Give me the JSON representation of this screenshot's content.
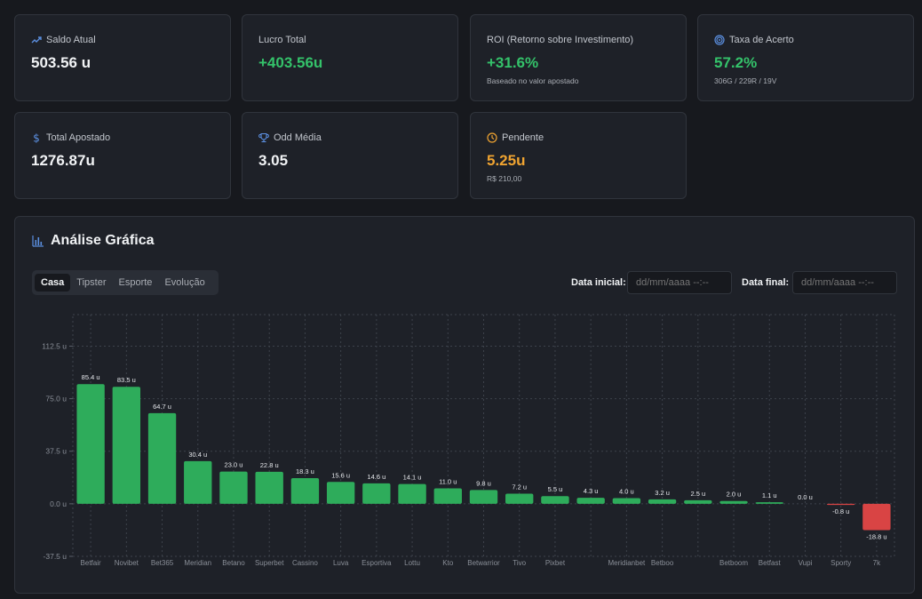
{
  "stats": {
    "saldo": {
      "label": "Saldo Atual",
      "value": "503.56 u",
      "icon": "trend-up-icon"
    },
    "lucro": {
      "label": "Lucro Total",
      "value": "+403.56u"
    },
    "roi": {
      "label": "ROI (Retorno sobre Investimento)",
      "value": "+31.6%",
      "sub": "Baseado no valor apostado"
    },
    "acerto": {
      "label": "Taxa de Acerto",
      "value": "57.2%",
      "sub": "306G / 229R / 19V",
      "icon": "target-icon"
    },
    "apostado": {
      "label": "Total Apostado",
      "value": "1276.87u",
      "icon": "dollar-icon"
    },
    "odd": {
      "label": "Odd Média",
      "value": "3.05",
      "icon": "trophy-icon"
    },
    "pendente": {
      "label": "Pendente",
      "value": "5.25u",
      "sub": "R$ 210,00",
      "icon": "clock-icon"
    }
  },
  "analysis": {
    "title": "Análise Gráfica",
    "tabs": [
      "Casa",
      "Tipster",
      "Esporte",
      "Evolução"
    ],
    "active_tab": "Casa",
    "date_start_label": "Data inicial:",
    "date_start_placeholder": "dd/mm/aaaa --:--",
    "date_end_label": "Data final:",
    "date_end_placeholder": "dd/mm/aaaa --:--"
  },
  "colors": {
    "positive": "#2eac5b",
    "negative": "#d94444",
    "accent": "#5b8fe0",
    "orange": "#f0a431"
  },
  "chart_data": {
    "type": "bar",
    "unit": "u",
    "ylim": [
      -37.5,
      135
    ],
    "yticks": [
      -37.5,
      0.0,
      37.5,
      75.0,
      112.5
    ],
    "grid": true,
    "categories": [
      "Betfair",
      "Novibet",
      "Bet365",
      "Meridian",
      "Betano",
      "Superbet",
      "Cassino",
      "Luva",
      "Esportiva",
      "Lottu",
      "Kto",
      "Betwarrior",
      "Tivo",
      "Pixbet",
      "",
      "Meridianbet",
      "Betboo",
      "",
      "Betboom",
      "Betfast",
      "Vupi",
      "Sporty",
      "7k"
    ],
    "values": [
      85.4,
      83.5,
      64.7,
      30.4,
      23.0,
      22.8,
      18.3,
      15.6,
      14.6,
      14.1,
      11.0,
      9.8,
      7.2,
      5.5,
      4.3,
      4.0,
      3.2,
      2.5,
      2.0,
      1.1,
      0.0,
      -0.8,
      -18.8
    ]
  }
}
